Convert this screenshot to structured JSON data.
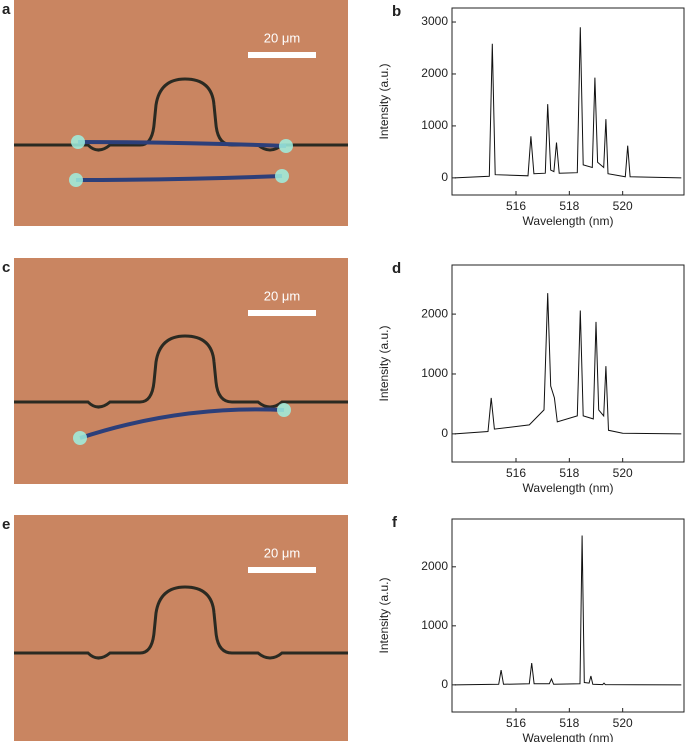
{
  "images": [
    {
      "label": "a",
      "scale_bar": "20 μm"
    },
    {
      "label": "c",
      "scale_bar": "20 μm"
    },
    {
      "label": "e",
      "scale_bar": "20 μm"
    }
  ],
  "chart_data": [
    {
      "type": "line",
      "panel_label": "b",
      "x_label": "Wavelength (nm)",
      "y_label": "Intensity (a.u.)",
      "color": "#111111",
      "xlim": [
        513.6,
        522.3
      ],
      "ylim": [
        -330,
        3270
      ],
      "xticks": [
        516,
        518,
        520
      ],
      "yticks": [
        0,
        1000,
        2000,
        3000
      ],
      "x": [
        513.7,
        515.0,
        515.11,
        515.22,
        516.45,
        516.56,
        516.67,
        517.1,
        517.19,
        517.3,
        517.42,
        517.52,
        517.62,
        518.3,
        518.41,
        518.52,
        518.86,
        518.96,
        519.06,
        519.29,
        519.37,
        519.45,
        520.1,
        520.19,
        520.28,
        522.2
      ],
      "values": [
        0,
        30,
        2580,
        60,
        40,
        800,
        80,
        90,
        1420,
        150,
        120,
        680,
        90,
        100,
        2900,
        250,
        200,
        1930,
        300,
        200,
        1130,
        80,
        20,
        620,
        20,
        0
      ]
    },
    {
      "type": "line",
      "panel_label": "d",
      "x_label": "Wavelength (nm)",
      "y_label": "Intensity (a.u.)",
      "color": "#111111",
      "xlim": [
        513.6,
        522.3
      ],
      "ylim": [
        -470,
        2820
      ],
      "xticks": [
        516,
        518,
        520
      ],
      "yticks": [
        0,
        1000,
        2000
      ],
      "x": [
        513.7,
        514.95,
        515.07,
        515.19,
        516.5,
        517.05,
        517.19,
        517.3,
        517.44,
        517.55,
        518.3,
        518.41,
        518.52,
        518.9,
        519.0,
        519.1,
        519.29,
        519.37,
        519.47,
        520.0,
        522.2
      ],
      "values": [
        0,
        40,
        600,
        80,
        150,
        400,
        2350,
        800,
        600,
        200,
        300,
        2060,
        300,
        250,
        1870,
        400,
        300,
        1130,
        60,
        10,
        0
      ]
    },
    {
      "type": "line",
      "panel_label": "f",
      "x_label": "Wavelength (nm)",
      "y_label": "Intensity (a.u.)",
      "color": "#111111",
      "xlim": [
        513.6,
        522.3
      ],
      "ylim": [
        -460,
        2810
      ],
      "xticks": [
        516,
        518,
        520
      ],
      "yticks": [
        0,
        1000,
        2000
      ],
      "x": [
        513.7,
        515.35,
        515.44,
        515.53,
        516.5,
        516.59,
        516.68,
        517.25,
        517.33,
        517.41,
        518.4,
        518.48,
        518.56,
        518.74,
        518.81,
        518.88,
        519.25,
        519.3,
        519.35,
        522.2
      ],
      "values": [
        0,
        10,
        250,
        10,
        20,
        370,
        20,
        20,
        100,
        10,
        20,
        2530,
        40,
        30,
        150,
        10,
        5,
        30,
        5,
        0
      ]
    }
  ]
}
